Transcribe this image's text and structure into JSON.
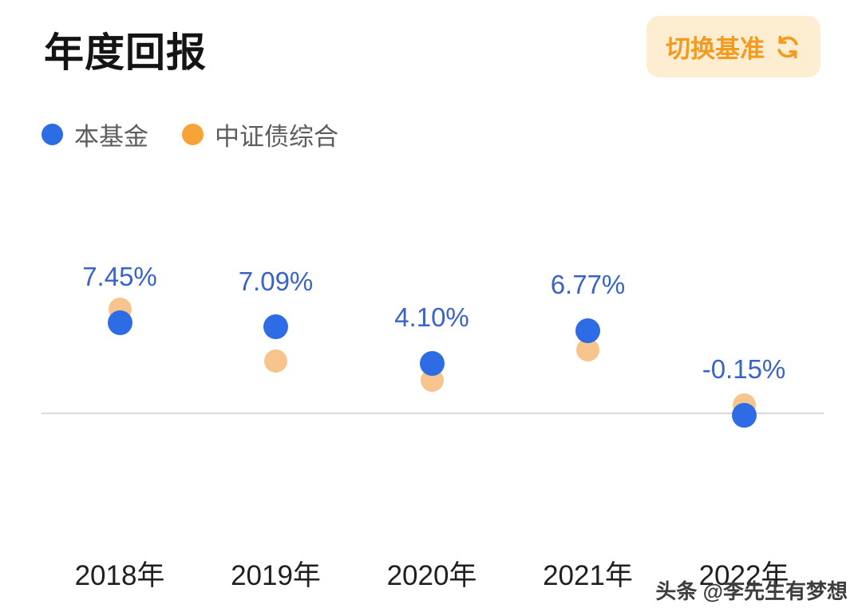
{
  "header": {
    "title": "年度回报",
    "switch_button": {
      "label": "切换基准",
      "icon": "refresh-icon"
    }
  },
  "legend": [
    {
      "label": "本基金",
      "color": "#2e6ce5"
    },
    {
      "label": "中证债综合",
      "color": "#f6a338"
    }
  ],
  "chart_data": {
    "type": "scatter",
    "categories": [
      "2018年",
      "2019年",
      "2020年",
      "2021年",
      "2022年"
    ],
    "series": [
      {
        "name": "本基金",
        "color": "#2e6ce5",
        "values": [
          7.45,
          7.09,
          4.1,
          6.77,
          -0.15
        ],
        "labels": [
          "7.45%",
          "7.09%",
          "4.10%",
          "6.77%",
          "-0.15%"
        ]
      },
      {
        "name": "中证债综合",
        "color": "#f8c48d",
        "values": [
          8.5,
          4.3,
          2.7,
          5.2,
          0.7
        ],
        "values_estimated": true
      }
    ],
    "baseline": 0,
    "ylim": [
      -2,
      10
    ],
    "grid": false,
    "legend_position": "top-left"
  },
  "watermark": "头条 @李先生有梦想"
}
